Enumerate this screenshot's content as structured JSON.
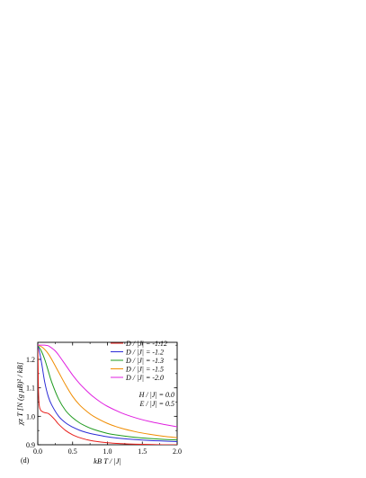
{
  "chart_data": {
    "type": "line",
    "panel_label": "(d)",
    "ylabel": "χz T [N (g μB)² / kB]",
    "xlabel": "kB T / |J|",
    "xlim": [
      0.0,
      2.0
    ],
    "ylim": [
      0.9,
      1.26
    ],
    "x_ticks": [
      0.0,
      0.5,
      1.0,
      1.5,
      2.0
    ],
    "x_tick_labels": [
      "0.0",
      "0.5",
      "1.0",
      "1.5",
      "2.0"
    ],
    "y_ticks": [
      0.9,
      1.0,
      1.1,
      1.2
    ],
    "y_tick_labels": [
      "0.9",
      "1.0",
      "1.1",
      "1.2"
    ],
    "grid": false,
    "legend_position": "top-right",
    "annotations": [
      "H / |J| = 0.0",
      "E / |J| = 0.5"
    ],
    "series": [
      {
        "name": "D / |J| = -1.12",
        "color": "#e8201c",
        "x": [
          0.0,
          0.005,
          0.01,
          0.02,
          0.04,
          0.07,
          0.1,
          0.15,
          0.2,
          0.25,
          0.3,
          0.4,
          0.5,
          0.6,
          0.7,
          0.8,
          1.0,
          1.2,
          1.4,
          1.6,
          1.8,
          2.0
        ],
        "y": [
          1.25,
          1.18,
          1.09,
          1.04,
          1.022,
          1.016,
          1.013,
          1.01,
          1.0,
          0.987,
          0.972,
          0.95,
          0.935,
          0.925,
          0.918,
          0.913,
          0.907,
          0.904,
          0.902,
          0.901,
          0.9,
          0.9
        ]
      },
      {
        "name": "D / |J| = -1.2",
        "color": "#2b2bd6",
        "x": [
          0.0,
          0.03,
          0.06,
          0.1,
          0.15,
          0.2,
          0.3,
          0.4,
          0.5,
          0.6,
          0.7,
          0.8,
          1.0,
          1.2,
          1.4,
          1.6,
          1.8,
          2.0
        ],
        "y": [
          1.25,
          1.22,
          1.18,
          1.12,
          1.07,
          1.04,
          1.0,
          0.977,
          0.962,
          0.951,
          0.943,
          0.937,
          0.928,
          0.922,
          0.918,
          0.915,
          0.913,
          0.911
        ]
      },
      {
        "name": "D / |J| = -1.3",
        "color": "#1e9a1e",
        "x": [
          0.0,
          0.05,
          0.1,
          0.15,
          0.2,
          0.3,
          0.4,
          0.5,
          0.6,
          0.7,
          0.8,
          1.0,
          1.2,
          1.4,
          1.6,
          1.8,
          2.0
        ],
        "y": [
          1.25,
          1.23,
          1.2,
          1.16,
          1.12,
          1.06,
          1.02,
          0.995,
          0.977,
          0.964,
          0.954,
          0.94,
          0.932,
          0.926,
          0.922,
          0.919,
          0.917
        ]
      },
      {
        "name": "D / |J| = -1.5",
        "color": "#f08c00",
        "x": [
          0.0,
          0.05,
          0.1,
          0.15,
          0.2,
          0.3,
          0.4,
          0.5,
          0.6,
          0.7,
          0.8,
          1.0,
          1.2,
          1.4,
          1.6,
          1.8,
          2.0
        ],
        "y": [
          1.25,
          1.245,
          1.235,
          1.22,
          1.2,
          1.155,
          1.11,
          1.07,
          1.04,
          1.018,
          1.0,
          0.975,
          0.958,
          0.946,
          0.937,
          0.93,
          0.925
        ]
      },
      {
        "name": "D / |J| = -2.0",
        "color": "#e020e0",
        "x": [
          0.0,
          0.05,
          0.1,
          0.15,
          0.2,
          0.25,
          0.3,
          0.4,
          0.5,
          0.6,
          0.7,
          0.8,
          0.9,
          1.0,
          1.2,
          1.4,
          1.6,
          1.8,
          2.0
        ],
        "y": [
          1.25,
          1.25,
          1.25,
          1.248,
          1.24,
          1.23,
          1.215,
          1.18,
          1.145,
          1.115,
          1.09,
          1.068,
          1.05,
          1.035,
          1.012,
          0.995,
          0.982,
          0.972,
          0.963
        ]
      }
    ]
  }
}
